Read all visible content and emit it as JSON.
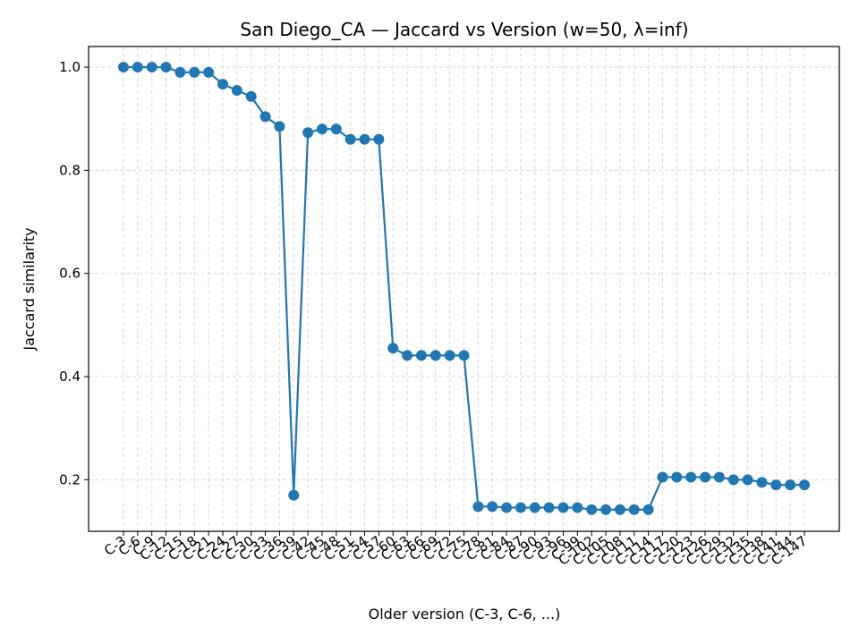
{
  "chart_data": {
    "type": "line",
    "title": "San Diego_CA — Jaccard vs Version (w=50, λ=inf)",
    "xlabel": "Older version (C-3, C-6, ...)",
    "ylabel": "Jaccard similarity",
    "ylim": [
      0.1,
      1.04
    ],
    "yticks": [
      0.2,
      0.4,
      0.6,
      0.8,
      1.0
    ],
    "grid": true,
    "categories": [
      "C-3",
      "C-6",
      "C-9",
      "C-12",
      "C-15",
      "C-18",
      "C-21",
      "C-24",
      "C-27",
      "C-30",
      "C-33",
      "C-36",
      "C-39",
      "C-42",
      "C-45",
      "C-48",
      "C-51",
      "C-54",
      "C-57",
      "C-60",
      "C-63",
      "C-66",
      "C-69",
      "C-72",
      "C-75",
      "C-78",
      "C-81",
      "C-84",
      "C-87",
      "C-90",
      "C-93",
      "C-96",
      "C-99",
      "C-102",
      "C-105",
      "C-108",
      "C-111",
      "C-114",
      "C-117",
      "C-120",
      "C-123",
      "C-126",
      "C-129",
      "C-132",
      "C-135",
      "C-138",
      "C-141",
      "C-144",
      "C-147"
    ],
    "series": [
      {
        "color": "#1f77b4",
        "values": [
          1.0,
          1.0,
          1.0,
          1.0,
          0.99,
          0.99,
          0.99,
          0.967,
          0.955,
          0.943,
          0.904,
          0.885,
          0.17,
          0.873,
          0.88,
          0.88,
          0.86,
          0.86,
          0.86,
          0.455,
          0.441,
          0.441,
          0.441,
          0.441,
          0.441,
          0.148,
          0.148,
          0.146,
          0.146,
          0.146,
          0.146,
          0.146,
          0.146,
          0.142,
          0.142,
          0.142,
          0.142,
          0.142,
          0.205,
          0.205,
          0.205,
          0.205,
          0.205,
          0.2,
          0.2,
          0.195,
          0.19,
          0.19,
          0.19
        ]
      }
    ]
  }
}
